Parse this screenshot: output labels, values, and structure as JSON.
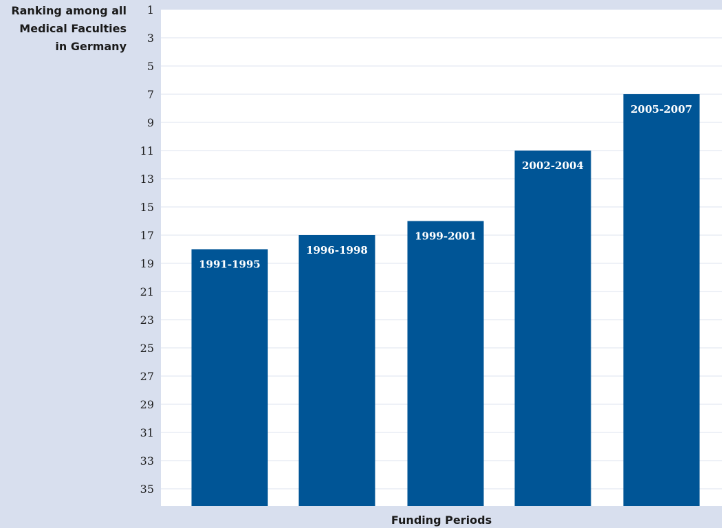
{
  "chart_data": {
    "type": "bar",
    "ylabel": [
      "Ranking among all",
      "Medical Faculties",
      "in Germany"
    ],
    "xlabel": "Funding Periods",
    "categories": [
      "1991-1995",
      "1996-1998",
      "1999-2001",
      "2002-2004",
      "2005-2007"
    ],
    "values": [
      18,
      17,
      16,
      11,
      7
    ],
    "yticks": [
      1,
      3,
      5,
      7,
      9,
      11,
      13,
      15,
      17,
      19,
      21,
      23,
      25,
      27,
      29,
      31,
      33,
      35
    ],
    "ylim": [
      1,
      36
    ],
    "y_inverted": true,
    "grid": true,
    "bar_color": "#005596",
    "background_color": "#d8dfee",
    "plot_background_color": "#ffffff"
  }
}
